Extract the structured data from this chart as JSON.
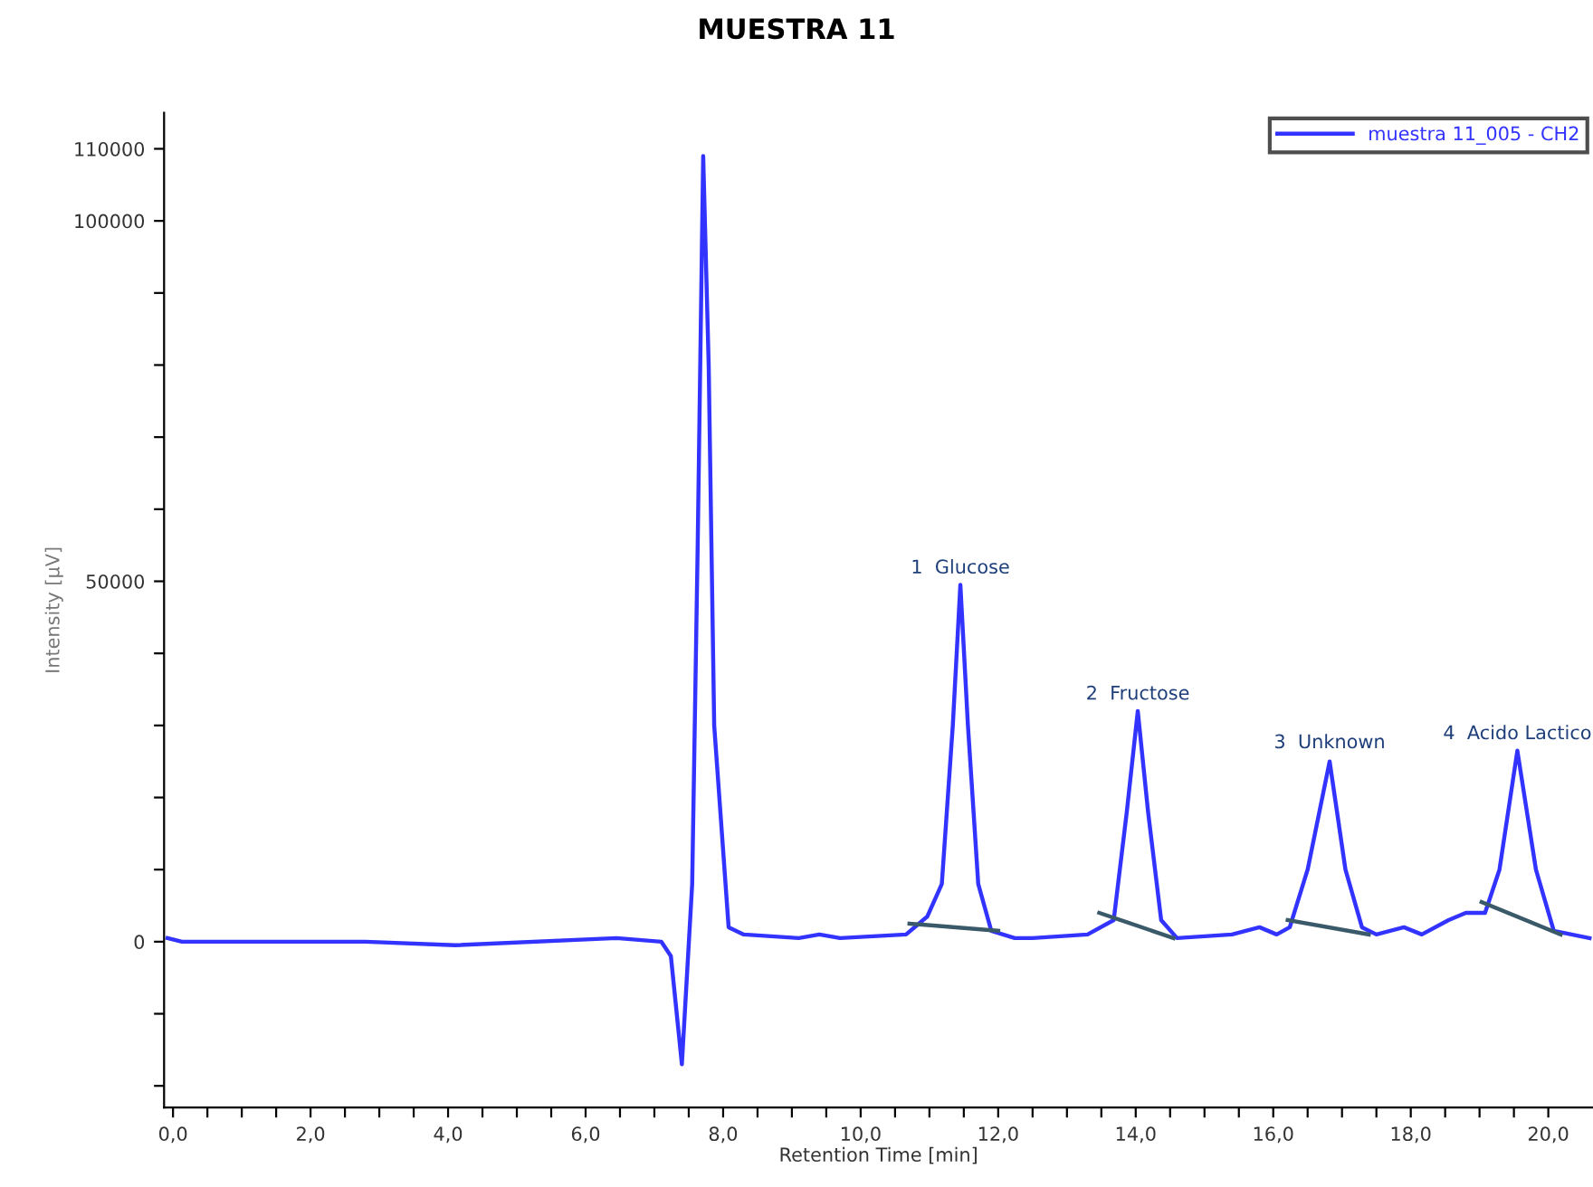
{
  "chart_data": {
    "type": "line",
    "title": "MUESTRA 11",
    "xlabel": "Retention Time [min]",
    "ylabel": "Intensity [µV]",
    "xlim": [
      -0.13,
      20.65
    ],
    "xticks": [
      {
        "value": 0,
        "label": "0,0"
      },
      {
        "value": 0.5,
        "label": null
      },
      {
        "value": 1,
        "label": null
      },
      {
        "value": 1.5,
        "label": null
      },
      {
        "value": 2,
        "label": "2,0"
      },
      {
        "value": 2.5,
        "label": null
      },
      {
        "value": 3,
        "label": null
      },
      {
        "value": 3.5,
        "label": null
      },
      {
        "value": 4,
        "label": "4,0"
      },
      {
        "value": 4.5,
        "label": null
      },
      {
        "value": 5,
        "label": null
      },
      {
        "value": 5.5,
        "label": null
      },
      {
        "value": 6,
        "label": "6,0"
      },
      {
        "value": 6.5,
        "label": null
      },
      {
        "value": 7,
        "label": null
      },
      {
        "value": 7.5,
        "label": null
      },
      {
        "value": 8,
        "label": "8,0"
      },
      {
        "value": 8.5,
        "label": null
      },
      {
        "value": 9,
        "label": null
      },
      {
        "value": 9.5,
        "label": null
      },
      {
        "value": 10,
        "label": "10,0"
      },
      {
        "value": 10.5,
        "label": null
      },
      {
        "value": 11,
        "label": null
      },
      {
        "value": 11.5,
        "label": null
      },
      {
        "value": 12,
        "label": "12,0"
      },
      {
        "value": 12.5,
        "label": null
      },
      {
        "value": 13,
        "label": null
      },
      {
        "value": 13.5,
        "label": null
      },
      {
        "value": 14,
        "label": "14,0"
      },
      {
        "value": 14.5,
        "label": null
      },
      {
        "value": 15,
        "label": null
      },
      {
        "value": 15.5,
        "label": null
      },
      {
        "value": 16,
        "label": "16,0"
      },
      {
        "value": 16.5,
        "label": null
      },
      {
        "value": 17,
        "label": null
      },
      {
        "value": 17.5,
        "label": null
      },
      {
        "value": 18,
        "label": "18,0"
      },
      {
        "value": 18.5,
        "label": null
      },
      {
        "value": 19,
        "label": null
      },
      {
        "value": 19.5,
        "label": null
      },
      {
        "value": 20,
        "label": "20,0"
      }
    ],
    "ylim": [
      -23000,
      115000
    ],
    "yticks": [
      {
        "value": -20000,
        "label": null
      },
      {
        "value": -10000,
        "label": null
      },
      0,
      {
        "value": 10000,
        "label": null
      },
      {
        "value": 20000,
        "label": null
      },
      {
        "value": 30000,
        "label": null
      },
      {
        "value": 40000,
        "label": null
      },
      50000,
      {
        "value": 60000,
        "label": null
      },
      {
        "value": 70000,
        "label": null
      },
      {
        "value": 80000,
        "label": null
      },
      {
        "value": 90000,
        "label": null
      },
      100000,
      110000
    ],
    "grid": false,
    "legend": "top right",
    "marker": "none",
    "line_style": "solid",
    "series": [
      {
        "name": "muestra 11_005 - CH2",
        "color": "#3333ff",
        "x": [
          -0.08,
          0.13,
          2.8,
          4.1,
          6.45,
          7.1,
          7.24,
          7.4,
          7.55,
          7.63,
          7.71,
          7.79,
          7.87,
          8.08,
          8.3,
          9.1,
          9.4,
          9.7,
          10.66,
          10.97,
          11.18,
          11.34,
          11.45,
          11.56,
          11.71,
          11.9,
          12.24,
          12.5,
          13.3,
          13.68,
          13.87,
          14.03,
          14.18,
          14.37,
          14.6,
          15.4,
          15.8,
          16.05,
          16.24,
          16.5,
          16.82,
          17.05,
          17.29,
          17.5,
          17.9,
          18.16,
          18.55,
          18.8,
          19.08,
          19.29,
          19.55,
          19.82,
          20.08,
          20.6
        ],
        "values": [
          500,
          0,
          0,
          -500,
          500,
          0,
          -2000,
          -17000,
          8000,
          55000,
          109000,
          80000,
          30000,
          2000,
          1000,
          500,
          1000,
          500,
          1000,
          3500,
          8000,
          30000,
          49500,
          30000,
          8000,
          1500,
          500,
          500,
          1000,
          3000,
          18000,
          32000,
          18000,
          3000,
          500,
          1000,
          2000,
          1000,
          2000,
          10000,
          25000,
          10000,
          2000,
          1000,
          2000,
          1000,
          3000,
          4000,
          4000,
          10000,
          26500,
          10000,
          1500,
          500
        ]
      },
      {
        "color": "#3a5a6a",
        "x": [
          10.71,
          12.0
        ],
        "values": [
          2500,
          1500
        ]
      },
      {
        "color": "#3a5a6a",
        "x": [
          13.47,
          14.55
        ],
        "values": [
          4000,
          500
        ]
      },
      {
        "color": "#3a5a6a",
        "x": [
          16.21,
          17.39
        ],
        "values": [
          3000,
          1000
        ]
      },
      {
        "color": "#3a5a6a",
        "x": [
          19.03,
          20.18
        ],
        "values": [
          5500,
          1000
        ]
      }
    ],
    "annotations": [
      {
        "text": "1  Glucose",
        "x": 11.45,
        "y": 49500
      },
      {
        "text": "2  Fructose",
        "x": 14.03,
        "y": 32000
      },
      {
        "text": "3  Unknown",
        "x": 16.82,
        "y": 25250
      },
      {
        "text": "4  Acido Lactico",
        "x": 19.55,
        "y": 26500
      }
    ]
  }
}
